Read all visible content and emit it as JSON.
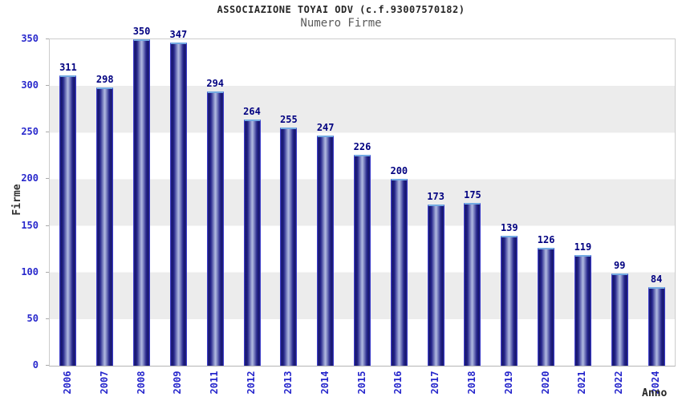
{
  "chart_data": {
    "type": "bar",
    "title": "ASSOCIAZIONE TOYAI ODV (c.f.93007570182)",
    "subtitle": "Numero Firme",
    "xlabel": "Anno",
    "ylabel": "Firme",
    "categories": [
      "2006",
      "2007",
      "2008",
      "2009",
      "2011",
      "2012",
      "2013",
      "2014",
      "2015",
      "2016",
      "2017",
      "2018",
      "2019",
      "2020",
      "2021",
      "2022",
      "2024"
    ],
    "values": [
      311,
      298,
      350,
      347,
      294,
      264,
      255,
      247,
      226,
      200,
      173,
      175,
      139,
      126,
      119,
      99,
      84
    ],
    "ylim": [
      0,
      350
    ],
    "yticks": [
      0,
      50,
      100,
      150,
      200,
      250,
      300,
      350
    ],
    "legend": "none",
    "grid": "alternating horizontal bands",
    "band_colors": {
      "white": "#ffffff",
      "gray": "#ececec"
    },
    "bar_style": {
      "outline": "#3c3cc8",
      "edge_dark": "#17176b",
      "mid": "#26268c",
      "light": "#98a0d2",
      "lightest": "#b2badf",
      "cap": "#74aae2"
    },
    "text_colors": {
      "title": "#262626",
      "subtitle": "#5a5a5a",
      "axis_ticks": "#2929cc",
      "value_labels": "#000080",
      "axis_titles": "#333333"
    }
  }
}
